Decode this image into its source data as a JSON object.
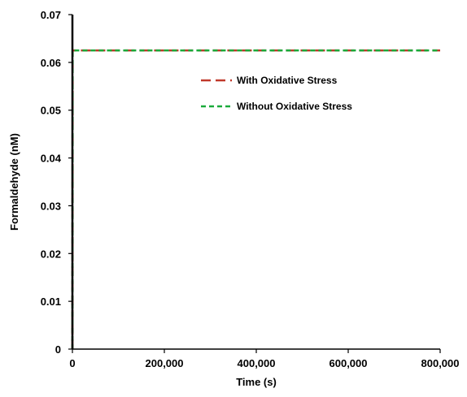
{
  "chart_data": {
    "type": "line",
    "title": "",
    "xlabel": "Time (s)",
    "ylabel": "Formaldehyde (nM)",
    "xlim": [
      0,
      800000
    ],
    "ylim": [
      0,
      0.07
    ],
    "x_ticks": [
      0,
      200000,
      400000,
      600000,
      800000
    ],
    "x_tick_labels": [
      "0",
      "200,000",
      "400,000",
      "600,000",
      "800,000"
    ],
    "y_ticks": [
      0,
      0.01,
      0.02,
      0.03,
      0.04,
      0.05,
      0.06,
      0.07
    ],
    "y_tick_labels": [
      "0",
      "0.01",
      "0.02",
      "0.03",
      "0.04",
      "0.05",
      "0.06",
      "0.07"
    ],
    "grid": false,
    "legend_position": "top-right",
    "series": [
      {
        "name": "With Oxidative Stress",
        "color": "#c0392b",
        "dash": "long-dash",
        "x": [
          0,
          500,
          1000,
          200000,
          400000,
          600000,
          800000
        ],
        "y": [
          0,
          0.0625,
          0.0625,
          0.0625,
          0.0625,
          0.0625,
          0.0625
        ]
      },
      {
        "name": "Without Oxidative Stress",
        "color": "#1aaa3a",
        "dash": "short-dash",
        "x": [
          0,
          500,
          1000,
          200000,
          400000,
          600000,
          800000
        ],
        "y": [
          0,
          0.0625,
          0.0625,
          0.0625,
          0.0625,
          0.0625,
          0.0625
        ]
      }
    ]
  }
}
